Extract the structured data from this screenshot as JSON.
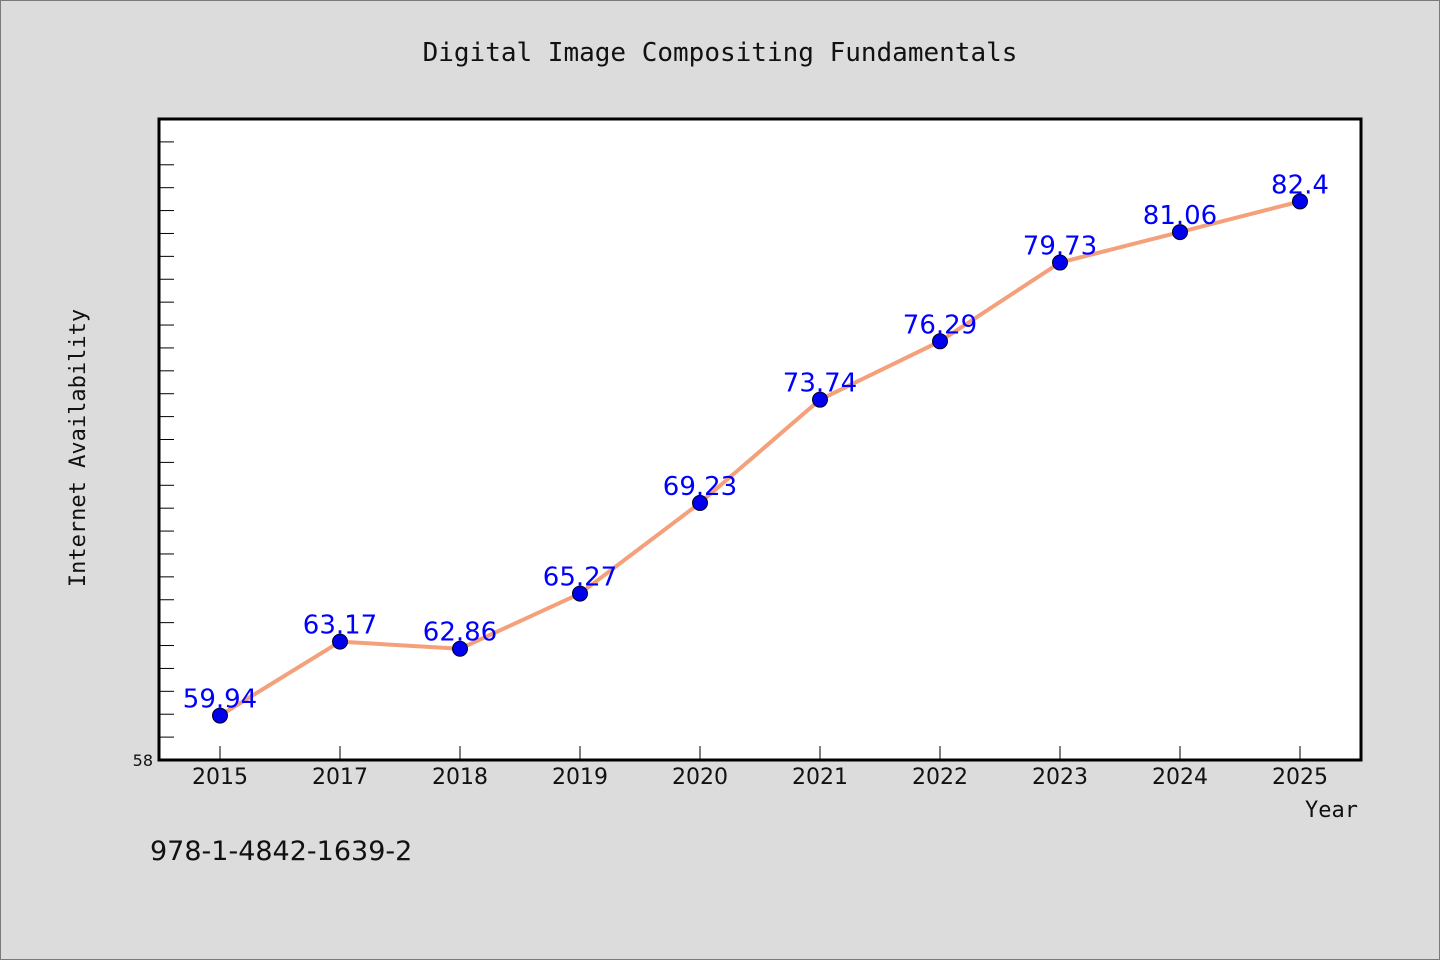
{
  "chart_data": {
    "type": "line",
    "title": "Digital Image Compositing Fundamentals",
    "xlabel": "Year",
    "ylabel": "Internet Availability",
    "categories": [
      "2015",
      "2017",
      "2018",
      "2019",
      "2020",
      "2021",
      "2022",
      "2023",
      "2024",
      "2025"
    ],
    "series": [
      {
        "values": [
          59.94,
          63.17,
          62.86,
          65.27,
          69.23,
          73.74,
          76.29,
          79.73,
          81.06,
          82.4
        ],
        "labels": [
          "59.94",
          "63.17",
          "62.86",
          "65.27",
          "69.23",
          "73.74",
          "76.29",
          "79.73",
          "81.06",
          "82.4"
        ]
      }
    ],
    "ylim": [
      58,
      86
    ],
    "y_tick_labels": [
      "58"
    ],
    "grid": false,
    "line_color": "#f4a07a",
    "marker_color": "#0000ee",
    "label_color": "#0000ff"
  },
  "footer": {
    "text": "978-1-4842-1639-2"
  }
}
